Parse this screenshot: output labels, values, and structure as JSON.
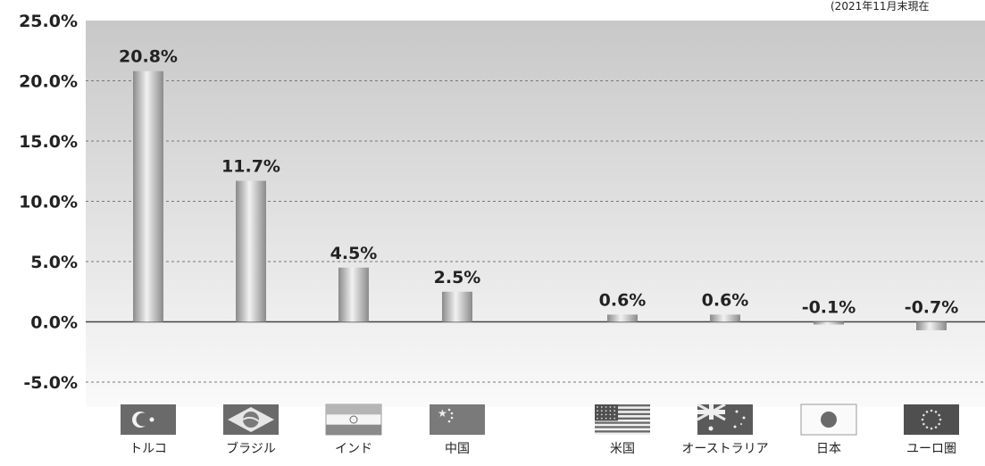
{
  "note": "(2021年11月末現在",
  "chart_data": {
    "type": "bar",
    "title": "",
    "xlabel": "",
    "ylabel": "",
    "ylim": [
      -5,
      25
    ],
    "yticks": [
      "25.0%",
      "20.0%",
      "15.0%",
      "10.0%",
      "5.0%",
      "0.0%",
      "-5.0%"
    ],
    "grid": true,
    "categories": [
      "トルコ",
      "ブラジル",
      "インド",
      "中国",
      "米国",
      "オーストラリア",
      "日本",
      "ユーロ圏"
    ],
    "values": [
      20.8,
      11.7,
      4.5,
      2.5,
      0.6,
      0.6,
      -0.1,
      -0.7
    ],
    "value_labels": [
      "20.8%",
      "11.7%",
      "4.5%",
      "2.5%",
      "0.6%",
      "0.6%",
      "-0.1%",
      "-0.7%"
    ],
    "flags": [
      "turkey-flag-icon",
      "brazil-flag-icon",
      "india-flag-icon",
      "china-flag-icon",
      "usa-flag-icon",
      "australia-flag-icon",
      "japan-flag-icon",
      "eu-flag-icon"
    ],
    "colors": {
      "bar_mid": "#f2f2f2",
      "bar_edge": "#8a8a8a",
      "plot_top": "#c8c8c8",
      "plot_bottom": "#fafafa",
      "zero_line": "#444444",
      "grid": "#777777"
    }
  }
}
